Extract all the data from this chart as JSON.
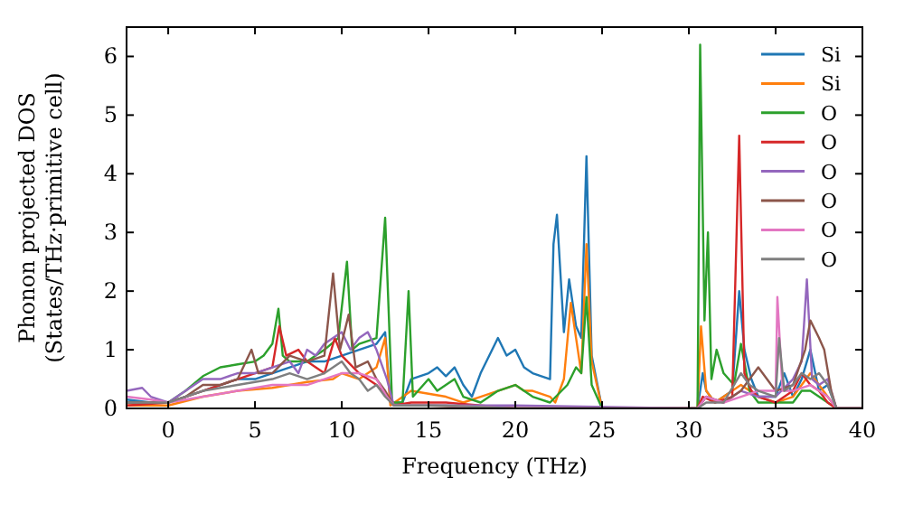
{
  "chart_data": {
    "type": "line",
    "xlabel": "Frequency (THz)",
    "ylabel": "Phonon projected DOS\n(States/THz·primitive cell)",
    "xlim": [
      -2.4,
      40
    ],
    "ylim": [
      0,
      6.5
    ],
    "xticks": [
      0,
      5,
      10,
      15,
      20,
      25,
      30,
      35,
      40
    ],
    "yticks": [
      0,
      1,
      2,
      3,
      4,
      5,
      6
    ],
    "grid": false,
    "legend": "top right",
    "marker": "none",
    "line_style": "solid",
    "series": [
      {
        "name": "Si",
        "color": "#1f77b4",
        "x": [
          -2.4,
          -1,
          0,
          1,
          2,
          3,
          4,
          5,
          6,
          7,
          8,
          9,
          10,
          11,
          12,
          12.5,
          12.8,
          13.5,
          14,
          15,
          15.5,
          16,
          16.5,
          17,
          17.5,
          18,
          19,
          19.5,
          20,
          20.5,
          21,
          22,
          22.2,
          22.4,
          22.8,
          23.1,
          23.5,
          23.8,
          24.1,
          24.4,
          25,
          30.5,
          30.8,
          31,
          31.5,
          32,
          32.5,
          32.9,
          33.2,
          33.6,
          34,
          35,
          35.5,
          36,
          36.5,
          37,
          37.5,
          38,
          38.5,
          40
        ],
        "values": [
          0.15,
          0.1,
          0.1,
          0.2,
          0.3,
          0.4,
          0.5,
          0.5,
          0.6,
          0.7,
          0.8,
          0.8,
          0.9,
          1.0,
          1.1,
          1.3,
          0.1,
          0.1,
          0.5,
          0.6,
          0.7,
          0.55,
          0.7,
          0.4,
          0.2,
          0.6,
          1.2,
          0.9,
          1.0,
          0.7,
          0.6,
          0.5,
          2.8,
          3.3,
          1.3,
          2.2,
          1.4,
          1.2,
          4.3,
          0.9,
          0,
          0,
          0.6,
          0.3,
          0.1,
          0.2,
          0.3,
          2.0,
          1.0,
          0.5,
          0.2,
          0.2,
          0.6,
          0.2,
          0.5,
          1.0,
          0.3,
          0.4,
          0,
          0
        ]
      },
      {
        "name": "Si",
        "color": "#ff7f0e",
        "x": [
          -2.4,
          0,
          2,
          4,
          6,
          8,
          9.5,
          10,
          11,
          12,
          12.5,
          12.8,
          14,
          15,
          16,
          17,
          18,
          19,
          20,
          20.5,
          21,
          22,
          22.3,
          22.8,
          23.2,
          23.5,
          23.8,
          24.1,
          24.4,
          25,
          30.5,
          30.7,
          31,
          31.5,
          32,
          33,
          34,
          35,
          36,
          37,
          38,
          38.5,
          40
        ],
        "values": [
          0.05,
          0.05,
          0.2,
          0.3,
          0.35,
          0.45,
          0.5,
          0.6,
          0.5,
          0.7,
          1.2,
          0.05,
          0.3,
          0.25,
          0.2,
          0.1,
          0.2,
          0.3,
          0.4,
          0.3,
          0.3,
          0.2,
          0.1,
          0.5,
          1.8,
          1.2,
          0.6,
          2.8,
          0.8,
          0,
          0,
          1.4,
          0.3,
          0.1,
          0.2,
          0.4,
          0.2,
          0.1,
          0.2,
          0.6,
          0.2,
          0,
          0
        ]
      },
      {
        "name": "O",
        "color": "#2ca02c",
        "x": [
          -2.4,
          0,
          1,
          2,
          3,
          4,
          5,
          5.5,
          6,
          6.35,
          6.6,
          7,
          8,
          9,
          9.8,
          10.3,
          10.6,
          11,
          12,
          12.5,
          12.9,
          13.5,
          13.85,
          14.1,
          15,
          15.5,
          16,
          16.5,
          17,
          18,
          19,
          20,
          20.5,
          21,
          22,
          23,
          23.5,
          23.8,
          24.1,
          24.4,
          25,
          30.5,
          30.65,
          30.9,
          31.1,
          31.3,
          31.6,
          32,
          32.6,
          33,
          33.5,
          34,
          35,
          36,
          36.5,
          37,
          38,
          38.5,
          40
        ],
        "values": [
          0.1,
          0.1,
          0.3,
          0.55,
          0.7,
          0.75,
          0.8,
          0.9,
          1.1,
          1.7,
          0.9,
          0.8,
          0.8,
          1.0,
          1.2,
          2.5,
          1.0,
          1.1,
          1.2,
          3.25,
          0.1,
          0.1,
          2.0,
          0.2,
          0.5,
          0.3,
          0.4,
          0.5,
          0.2,
          0.1,
          0.3,
          0.4,
          0.3,
          0.2,
          0.1,
          0.4,
          0.7,
          0.6,
          1.9,
          0.4,
          0,
          0,
          6.2,
          1.5,
          3.0,
          0.5,
          1.0,
          0.6,
          0.4,
          1.1,
          0.3,
          0.1,
          0.1,
          0.1,
          0.3,
          0.3,
          0.1,
          0,
          0
        ]
      },
      {
        "name": "O",
        "color": "#d62728",
        "x": [
          -2.4,
          0,
          1,
          2,
          3,
          4,
          5,
          6,
          6.4,
          6.8,
          7.5,
          8,
          9,
          9.6,
          10,
          11,
          12,
          12.6,
          13,
          14,
          16,
          18,
          20,
          30.5,
          30.8,
          31.5,
          32.5,
          32.9,
          33.2,
          33.6,
          34,
          35,
          36,
          36.5,
          37,
          37.5,
          38,
          38.5,
          40
        ],
        "values": [
          0.05,
          0.1,
          0.2,
          0.3,
          0.4,
          0.5,
          0.6,
          0.7,
          1.4,
          0.9,
          1.0,
          0.8,
          0.6,
          1.2,
          0.9,
          0.6,
          0.4,
          0.2,
          0.05,
          0.1,
          0.1,
          0.05,
          0,
          0,
          0.2,
          0.1,
          0.2,
          4.65,
          0.6,
          0.3,
          0.2,
          0.1,
          0.3,
          0.6,
          0.4,
          0.3,
          0.1,
          0,
          0
        ]
      },
      {
        "name": "O",
        "color": "#9467bd",
        "x": [
          -2.4,
          -1.5,
          -1,
          0,
          1,
          2,
          3,
          4,
          5,
          6,
          7,
          7.5,
          8,
          8.5,
          9,
          10,
          10.5,
          11,
          11.5,
          12,
          12.6,
          13,
          15,
          20,
          30.5,
          31,
          32,
          33,
          34,
          35,
          36,
          36.5,
          36.8,
          37.1,
          37.5,
          38,
          38.5,
          40
        ],
        "values": [
          0.3,
          0.35,
          0.2,
          0.1,
          0.3,
          0.5,
          0.5,
          0.6,
          0.6,
          0.7,
          0.8,
          0.6,
          1.0,
          0.9,
          1.1,
          1.3,
          1.0,
          1.2,
          1.3,
          1.0,
          0.5,
          0.05,
          0.05,
          0.05,
          0,
          0.2,
          0.1,
          0.3,
          0.2,
          0.2,
          0.5,
          0.8,
          2.2,
          0.5,
          0.4,
          0.5,
          0,
          0
        ]
      },
      {
        "name": "O",
        "color": "#8c564b",
        "x": [
          -2.4,
          0,
          1,
          2,
          3,
          4,
          4.8,
          5.2,
          6,
          7,
          8,
          9,
          9.5,
          9.9,
          10.4,
          10.8,
          11.5,
          12,
          12.5,
          13,
          15,
          20,
          30.5,
          31,
          32,
          33,
          34,
          35,
          36,
          36.7,
          37,
          37.5,
          37.8,
          38.2,
          38.5,
          40
        ],
        "values": [
          0.1,
          0.1,
          0.2,
          0.4,
          0.4,
          0.5,
          1.0,
          0.6,
          0.6,
          0.9,
          0.8,
          0.9,
          2.3,
          1.0,
          1.6,
          0.7,
          0.8,
          0.5,
          0.3,
          0.05,
          0.05,
          0,
          0,
          0.2,
          0.1,
          0.3,
          0.7,
          0.3,
          0.4,
          1.0,
          1.5,
          1.2,
          1.0,
          0.3,
          0,
          0
        ]
      },
      {
        "name": "O",
        "color": "#e377c2",
        "x": [
          -2.4,
          -1,
          0,
          2,
          4,
          6,
          8,
          9,
          10,
          11,
          12,
          12.6,
          13,
          16,
          20,
          30.5,
          31,
          32,
          33,
          34,
          35,
          35.1,
          35.4,
          36,
          37,
          38,
          38.5,
          40
        ],
        "values": [
          0.2,
          0.15,
          0.1,
          0.2,
          0.3,
          0.4,
          0.4,
          0.5,
          0.6,
          0.6,
          0.5,
          0.2,
          0.05,
          0.05,
          0,
          0,
          0.2,
          0.1,
          0.2,
          0.3,
          0.3,
          1.9,
          0.3,
          0.3,
          0.4,
          0.2,
          0,
          0
        ]
      },
      {
        "name": "O",
        "color": "#7f7f7f",
        "x": [
          -2.4,
          0,
          2,
          4,
          6,
          7,
          8,
          9,
          10,
          10.5,
          11,
          11.5,
          12,
          12.5,
          13,
          16,
          20,
          30.5,
          31,
          32,
          33,
          33.5,
          34,
          35,
          35.2,
          35.5,
          36,
          36.5,
          37,
          37.5,
          38,
          38.5,
          40
        ],
        "values": [
          0.1,
          0.1,
          0.3,
          0.4,
          0.5,
          0.6,
          0.5,
          0.6,
          0.8,
          0.6,
          0.5,
          0.3,
          0.4,
          0.2,
          0.05,
          0.05,
          0,
          0,
          0.1,
          0.1,
          0.6,
          0.4,
          0.3,
          0.2,
          1.2,
          0.3,
          0.4,
          0.6,
          0.5,
          0.6,
          0.4,
          0,
          0
        ]
      }
    ]
  }
}
